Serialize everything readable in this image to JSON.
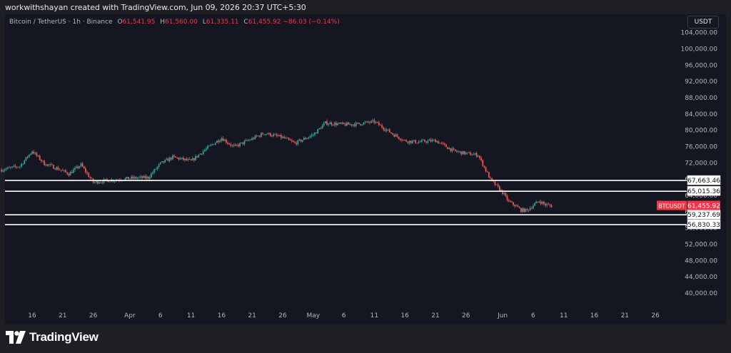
{
  "header": {
    "credit": "workwithshayan created with TradingView.com, Jun 09, 2026 20:37 UTC+5:30"
  },
  "legend": {
    "symbol": "Bitcoin / TetherUS · 1h · Binance",
    "o_key": "O",
    "open": "61,541.95",
    "h_key": "H",
    "high": "61,560.00",
    "l_key": "L",
    "low": "61,335.11",
    "c_key": "C",
    "close": "61,455.92",
    "change": "−86.03 (−0.14%)"
  },
  "currency_button": "USDT",
  "brand": {
    "name": "TradingView"
  },
  "colors": {
    "background": "#141722",
    "up": "#26a69a",
    "down": "#ef5350",
    "price_tag": "#f23645",
    "level_line": "#ffffff"
  },
  "chart_data": {
    "type": "candlestick",
    "title": "Bitcoin / TetherUS · 1h · Binance",
    "grid": false,
    "ylim": [
      36500,
      108500
    ],
    "y_ticks": [
      104000,
      100000,
      96000,
      92000,
      88000,
      84000,
      80000,
      76000,
      72000,
      68000,
      64000,
      60000,
      56000,
      52000,
      48000,
      44000,
      40000
    ],
    "y_tick_labels": [
      "104,000.00",
      "100,000.00",
      "96,000.00",
      "92,000.00",
      "88,000.00",
      "84,000.00",
      "80,000.00",
      "76,000.00",
      "72,000.00",
      "68,000.00",
      "64,000.00",
      "60,000.00",
      "56,000.00",
      "52,000.00",
      "48,000.00",
      "44,000.00",
      "40,000.00"
    ],
    "x_ticks": [
      "16",
      "21",
      "26",
      "Apr",
      "6",
      "11",
      "16",
      "21",
      "26",
      "May",
      "6",
      "11",
      "16",
      "21",
      "26",
      "Jun",
      "6",
      "11",
      "16",
      "21",
      "26"
    ],
    "price_path": {
      "dates": [
        "Mar 11",
        "Mar 14",
        "Mar 16",
        "Mar 18",
        "Mar 20",
        "Mar 22",
        "Mar 24",
        "Mar 26",
        "Mar 28",
        "Mar 30",
        "Apr 1",
        "Apr 4",
        "Apr 6",
        "Apr 8",
        "Apr 11",
        "Apr 13",
        "Apr 16",
        "Apr 18",
        "Apr 21",
        "Apr 23",
        "Apr 26",
        "Apr 28",
        "May 1",
        "May 3",
        "May 6",
        "May 8",
        "May 11",
        "May 14",
        "May 16",
        "May 18",
        "May 21",
        "May 24",
        "May 26",
        "May 28",
        "May 30",
        "Jun 1",
        "Jun 2",
        "Jun 3",
        "Jun 4",
        "Jun 5",
        "Jun 6",
        "Jun 7",
        "Jun 8",
        "Jun 9"
      ],
      "close": [
        70300,
        71200,
        74900,
        71800,
        70700,
        69300,
        71500,
        67200,
        67600,
        67900,
        68200,
        68400,
        71800,
        73400,
        72400,
        74900,
        78100,
        75900,
        77900,
        79300,
        78200,
        76800,
        78900,
        81800,
        81400,
        81500,
        82100,
        79100,
        77400,
        77100,
        77500,
        74900,
        74300,
        73900,
        67900,
        64700,
        62400,
        61600,
        60400,
        60300,
        61600,
        62600,
        61700,
        61456
      ]
    },
    "last_price": "61,455.92",
    "last_price_symbol": "BTCUSDT",
    "horizontal_levels": [
      {
        "value": 67663.46,
        "label": "67,663.46"
      },
      {
        "value": 65015.36,
        "label": "65,015.36"
      },
      {
        "value": 59237.69,
        "label": "59,237.69"
      },
      {
        "value": 56830.33,
        "label": "56,830.33"
      }
    ]
  }
}
